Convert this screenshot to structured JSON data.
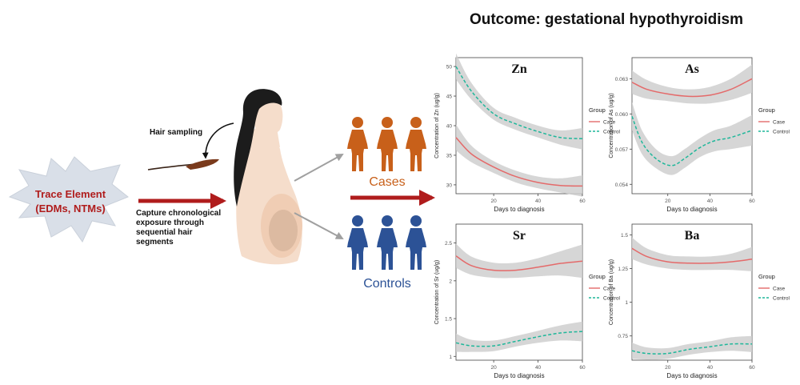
{
  "figure": {
    "title": "Outcome: gestational hypothyroidism",
    "trace_element": {
      "line1": "Trace Element",
      "line2": "(EDMs, NTMs)"
    },
    "hair_sampling_label": "Hair sampling",
    "capture_text": [
      "Capture chronological",
      "exposure through",
      "sequential hair",
      "segments"
    ],
    "groups": {
      "cases_label": "Cases",
      "controls_label": "Controls"
    },
    "colors": {
      "trace_red": "#b01c1c",
      "case_figure": "#c8601a",
      "control_figure": "#2c5296",
      "case_line": "#e46a6a",
      "control_line": "#1fb79a",
      "ci_band": "#cfcfcf",
      "burst": "#d9dfe8",
      "skin": "#f5ddcb",
      "hair": "#1c1c1c"
    }
  },
  "chart_data": [
    {
      "type": "line",
      "title": "Zn",
      "xlabel": "Days to diagnosis",
      "ylabel": "Concentration of Zn (ug/g)",
      "xlim": [
        3,
        60
      ],
      "ylim": [
        28.5,
        51.5
      ],
      "xticks": [
        20,
        40,
        60
      ],
      "yticks": [
        30,
        35,
        40,
        45,
        50
      ],
      "legend": {
        "title": "Group",
        "entries": [
          "Case",
          "Control"
        ],
        "position": "right"
      },
      "series": [
        {
          "name": "Case",
          "x": [
            3,
            10,
            20,
            30,
            40,
            50,
            60
          ],
          "y": [
            38.0,
            35.2,
            33.0,
            31.4,
            30.4,
            29.9,
            29.8
          ],
          "ci": [
            2.2,
            1.4,
            1.0,
            1.0,
            1.0,
            1.2,
            1.8
          ]
        },
        {
          "name": "Control",
          "x": [
            3,
            10,
            20,
            30,
            40,
            50,
            60
          ],
          "y": [
            50.0,
            45.8,
            42.0,
            40.3,
            39.0,
            38.0,
            37.8
          ],
          "ci": [
            2.2,
            1.4,
            1.0,
            1.0,
            1.0,
            1.2,
            1.8
          ]
        }
      ]
    },
    {
      "type": "line",
      "title": "As",
      "xlabel": "Days to diagnosis",
      "ylabel": "Concentration of As (ug/g)",
      "xlim": [
        3,
        60
      ],
      "ylim": [
        0.0532,
        0.0648
      ],
      "xticks": [
        20,
        40,
        60
      ],
      "yticks": [
        0.054,
        0.057,
        0.06,
        0.063
      ],
      "legend": {
        "title": "Group",
        "entries": [
          "Case",
          "Control"
        ],
        "position": "right"
      },
      "series": [
        {
          "name": "Case",
          "x": [
            3,
            10,
            20,
            30,
            40,
            50,
            60
          ],
          "y": [
            0.0627,
            0.0621,
            0.0617,
            0.0615,
            0.0616,
            0.0621,
            0.063
          ],
          "ci": [
            0.001,
            0.0008,
            0.0006,
            0.0006,
            0.0007,
            0.0009,
            0.0012
          ]
        },
        {
          "name": "Control",
          "x": [
            3,
            8,
            15,
            22,
            28,
            35,
            42,
            50,
            60
          ],
          "y": [
            0.0598,
            0.0575,
            0.0561,
            0.0556,
            0.0562,
            0.0571,
            0.0577,
            0.058,
            0.0586
          ],
          "ci": [
            0.0012,
            0.001,
            0.0008,
            0.0008,
            0.0008,
            0.0008,
            0.0009,
            0.001,
            0.0013
          ]
        }
      ]
    },
    {
      "type": "line",
      "title": "Sr",
      "xlabel": "Days to diagnosis",
      "ylabel": "Concentration of Sr (ug/g)",
      "xlim": [
        3,
        60
      ],
      "ylim": [
        0.95,
        2.75
      ],
      "xticks": [
        20,
        40,
        60
      ],
      "yticks": [
        1.0,
        1.5,
        2.0,
        2.5
      ],
      "legend": {
        "title": "Group",
        "entries": [
          "Case",
          "Control"
        ],
        "position": "right"
      },
      "series": [
        {
          "name": "Case",
          "x": [
            3,
            10,
            20,
            30,
            40,
            50,
            60
          ],
          "y": [
            2.33,
            2.2,
            2.14,
            2.14,
            2.18,
            2.23,
            2.26
          ],
          "ci": [
            0.16,
            0.12,
            0.1,
            0.1,
            0.12,
            0.16,
            0.22
          ]
        },
        {
          "name": "Control",
          "x": [
            3,
            10,
            20,
            30,
            40,
            50,
            60
          ],
          "y": [
            1.18,
            1.14,
            1.14,
            1.2,
            1.26,
            1.31,
            1.33
          ],
          "ci": [
            0.12,
            0.08,
            0.07,
            0.07,
            0.08,
            0.1,
            0.13
          ]
        }
      ]
    },
    {
      "type": "line",
      "title": "Ba",
      "xlabel": "Days to diagnosis",
      "ylabel": "Concentration of Ba (ug/g)",
      "xlim": [
        3,
        60
      ],
      "ylim": [
        0.57,
        1.58
      ],
      "xticks": [
        20,
        40,
        60
      ],
      "yticks": [
        0.75,
        1.0,
        1.25,
        1.5
      ],
      "legend": {
        "title": "Group",
        "entries": [
          "Case",
          "Control"
        ],
        "position": "right"
      },
      "series": [
        {
          "name": "Case",
          "x": [
            3,
            10,
            20,
            30,
            40,
            50,
            60
          ],
          "y": [
            1.4,
            1.34,
            1.3,
            1.29,
            1.29,
            1.3,
            1.32
          ],
          "ci": [
            0.08,
            0.06,
            0.05,
            0.05,
            0.05,
            0.06,
            0.09
          ]
        },
        {
          "name": "Control",
          "x": [
            3,
            10,
            20,
            30,
            40,
            50,
            60
          ],
          "y": [
            0.64,
            0.62,
            0.62,
            0.65,
            0.67,
            0.69,
            0.69
          ],
          "ci": [
            0.06,
            0.045,
            0.04,
            0.04,
            0.04,
            0.05,
            0.06
          ]
        }
      ]
    }
  ]
}
